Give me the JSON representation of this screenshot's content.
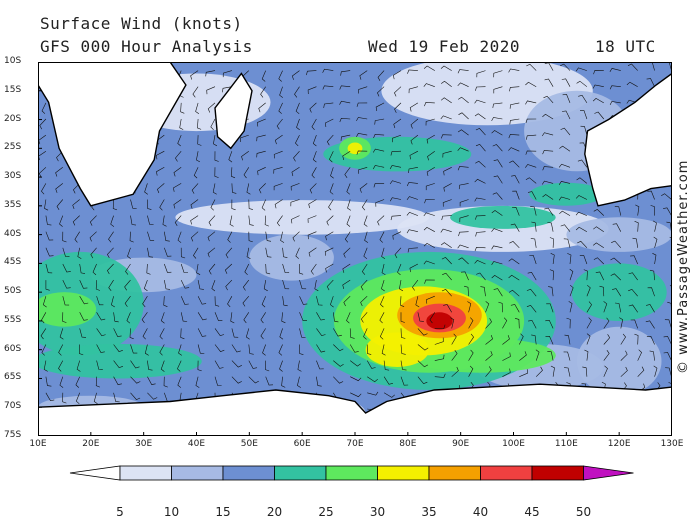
{
  "header": {
    "title": "Surface Wind (knots)",
    "subtitle": "GFS 000 Hour Analysis",
    "date": "Wed 19 Feb 2020",
    "time": "18 UTC"
  },
  "credit": "© www.PassageWeather.com",
  "map": {
    "projection": "equirectangular",
    "lon_range": [
      10,
      130
    ],
    "lat_range": [
      -10,
      -75
    ],
    "lat_labels": [
      "10S",
      "15S",
      "20S",
      "25S",
      "30S",
      "35S",
      "40S",
      "45S",
      "50S",
      "55S",
      "60S",
      "65S",
      "70S",
      "75S"
    ],
    "lon_labels": [
      "10E",
      "20E",
      "30E",
      "40E",
      "50E",
      "60E",
      "70E",
      "80E",
      "90E",
      "100E",
      "110E",
      "120E",
      "130E"
    ],
    "land_color": "#ffffff",
    "coast_color": "#000000",
    "features": [
      {
        "name": "Southern Africa"
      },
      {
        "name": "Madagascar"
      },
      {
        "name": "Australia"
      },
      {
        "name": "Antarctica"
      }
    ],
    "wind_maxima": [
      {
        "label": "storm core",
        "lon": 86,
        "lat": -55,
        "speed_kt": 45
      },
      {
        "lon": 70,
        "lat": -25,
        "speed_kt": 30
      },
      {
        "lon": 20,
        "lat": -53,
        "speed_kt": 30
      }
    ]
  },
  "legend": {
    "breaks": [
      "5",
      "10",
      "15",
      "20",
      "25",
      "30",
      "35",
      "40",
      "45",
      "50"
    ],
    "colors": [
      "#ffffff",
      "#dce3f4",
      "#a7bae4",
      "#6d8fd2",
      "#33c2a1",
      "#5ee85e",
      "#f4f000",
      "#f5a000",
      "#f04040",
      "#c00000",
      "#c010c0"
    ]
  }
}
